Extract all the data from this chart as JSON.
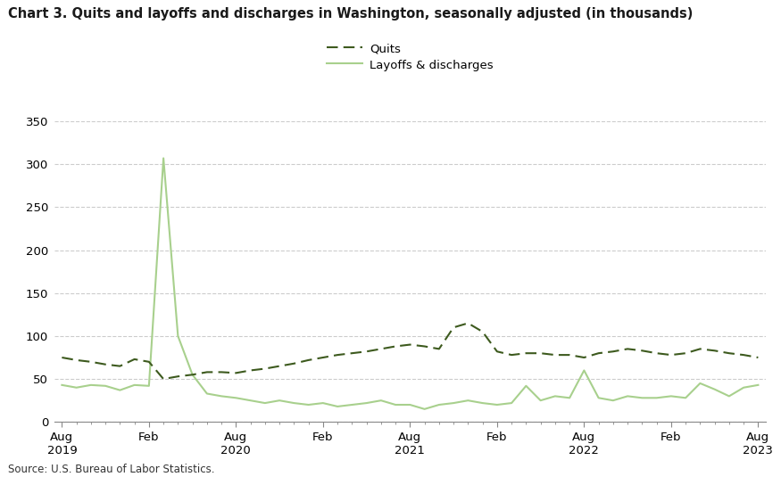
{
  "title": "Chart 3. Quits and layoffs and discharges in Washington, seasonally adjusted (in thousands)",
  "source": "Source: U.S. Bureau of Labor Statistics.",
  "quits_color": "#3d5a1e",
  "layoffs_color": "#a8d08d",
  "background_color": "#ffffff",
  "grid_color": "#cccccc",
  "ylim": [
    0,
    350
  ],
  "yticks": [
    0,
    50,
    100,
    150,
    200,
    250,
    300,
    350
  ],
  "xtick_labels": [
    "Aug\n2019",
    "Feb",
    "Aug\n2020",
    "Feb",
    "Aug\n2021",
    "Feb",
    "Aug\n2022",
    "Feb",
    "Aug\n2023"
  ],
  "quits": [
    75,
    72,
    70,
    67,
    65,
    73,
    70,
    50,
    53,
    55,
    58,
    58,
    57,
    60,
    62,
    65,
    68,
    72,
    75,
    78,
    80,
    82,
    85,
    88,
    90,
    88,
    85,
    110,
    115,
    105,
    82,
    78,
    80,
    80,
    78,
    78,
    75,
    80,
    82,
    85,
    83,
    80,
    78,
    80,
    85,
    83,
    80,
    78,
    75
  ],
  "layoffs": [
    43,
    40,
    43,
    42,
    37,
    43,
    42,
    307,
    100,
    55,
    33,
    30,
    28,
    25,
    22,
    25,
    22,
    20,
    22,
    18,
    20,
    22,
    25,
    20,
    20,
    15,
    20,
    22,
    25,
    22,
    20,
    22,
    42,
    25,
    30,
    28,
    60,
    28,
    25,
    30,
    28,
    28,
    30,
    28,
    45,
    38,
    30,
    40,
    43
  ],
  "n_points": 49,
  "x_tick_positions": [
    0,
    6,
    12,
    18,
    24,
    30,
    36,
    42,
    48
  ]
}
